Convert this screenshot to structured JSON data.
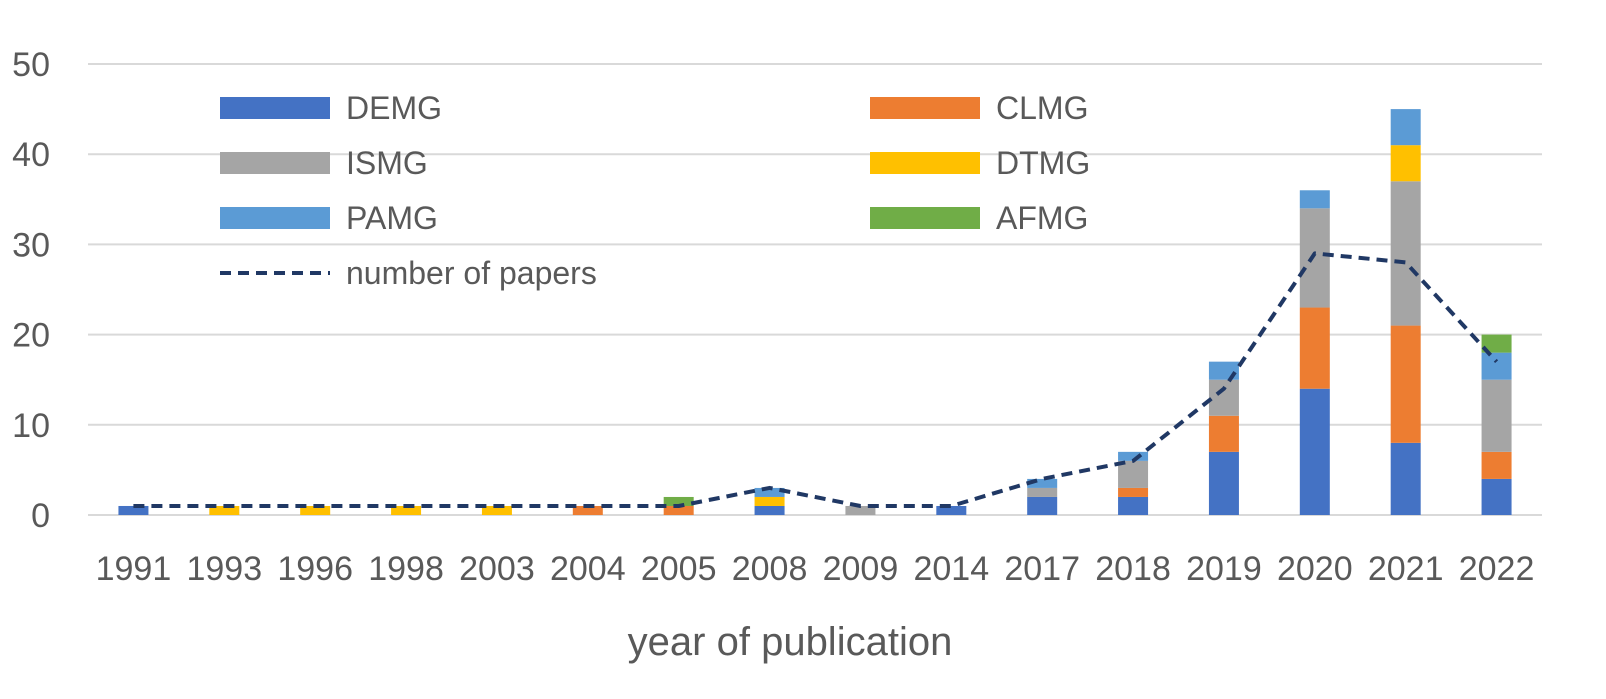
{
  "chart_data": {
    "type": "bar",
    "stacked": true,
    "title": "",
    "xlabel": "year of publication",
    "ylabel": "",
    "ylim": [
      0,
      50
    ],
    "yticks": [
      0,
      10,
      20,
      30,
      40,
      50
    ],
    "grid": true,
    "legend_position": "top-left inside plot, two columns",
    "categories": [
      "1991",
      "1993",
      "1996",
      "1998",
      "2003",
      "2004",
      "2005",
      "2008",
      "2009",
      "2014",
      "2017",
      "2018",
      "2019",
      "2020",
      "2021",
      "2022"
    ],
    "series": [
      {
        "name": "DEMG",
        "color": "#4472C4",
        "values": [
          1,
          0,
          0,
          0,
          0,
          0,
          0,
          1,
          0,
          1,
          2,
          2,
          7,
          14,
          8,
          4
        ]
      },
      {
        "name": "CLMG",
        "color": "#ED7D31",
        "values": [
          0,
          0,
          0,
          0,
          0,
          1,
          1,
          0,
          0,
          0,
          0,
          1,
          4,
          9,
          13,
          3
        ]
      },
      {
        "name": "ISMG",
        "color": "#A5A5A5",
        "values": [
          0,
          0,
          0,
          0,
          0,
          0,
          0,
          0,
          1,
          0,
          1,
          3,
          4,
          11,
          16,
          8
        ]
      },
      {
        "name": "DTMG",
        "color": "#FFC000",
        "values": [
          0,
          1,
          1,
          1,
          1,
          0,
          0,
          1,
          0,
          0,
          0,
          0,
          0,
          0,
          4,
          0
        ]
      },
      {
        "name": "PAMG",
        "color": "#5B9BD5",
        "values": [
          0,
          0,
          0,
          0,
          0,
          0,
          0,
          1,
          0,
          0,
          1,
          1,
          2,
          2,
          4,
          3
        ]
      },
      {
        "name": "AFMG",
        "color": "#70AD47",
        "values": [
          0,
          0,
          0,
          0,
          0,
          0,
          1,
          0,
          0,
          0,
          0,
          0,
          0,
          0,
          0,
          2
        ]
      }
    ],
    "line_series": {
      "name": "number of papers",
      "color": "#203864",
      "style": "dashed",
      "values": [
        1,
        1,
        1,
        1,
        1,
        1,
        1,
        3,
        1,
        1,
        4,
        6,
        14,
        29,
        28,
        17
      ]
    }
  }
}
